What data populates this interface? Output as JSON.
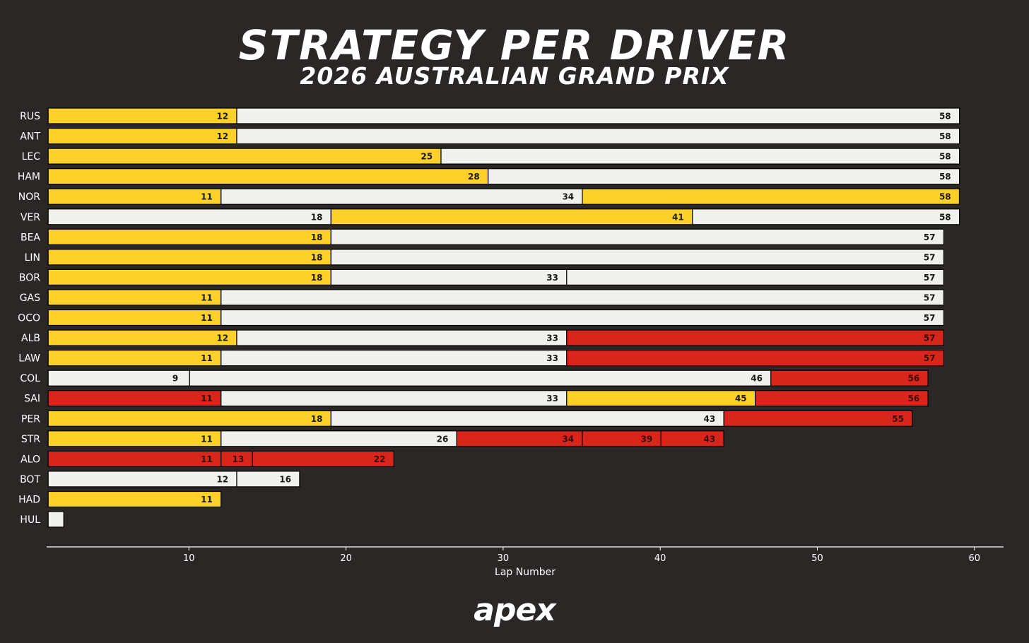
{
  "chart_data": {
    "type": "bar",
    "title": "Strategy per Driver",
    "subtitle": "2026 Australian Grand Prix",
    "xlabel": "Lap Number",
    "ylabel": "",
    "xlim": [
      1,
      62
    ],
    "xticks": [
      10,
      20,
      30,
      40,
      50,
      60
    ],
    "grid": false,
    "colors": {
      "MEDIUM": "#fed12a",
      "HARD": "#f0f0ec",
      "SOFT": "#d9261c"
    },
    "drivers": [
      {
        "name": "RUS",
        "stints": [
          {
            "compound": "MEDIUM",
            "end": 12
          },
          {
            "compound": "HARD",
            "end": 58
          }
        ]
      },
      {
        "name": "ANT",
        "stints": [
          {
            "compound": "MEDIUM",
            "end": 12
          },
          {
            "compound": "HARD",
            "end": 58
          }
        ]
      },
      {
        "name": "LEC",
        "stints": [
          {
            "compound": "MEDIUM",
            "end": 25
          },
          {
            "compound": "HARD",
            "end": 58
          }
        ]
      },
      {
        "name": "HAM",
        "stints": [
          {
            "compound": "MEDIUM",
            "end": 28
          },
          {
            "compound": "HARD",
            "end": 58
          }
        ]
      },
      {
        "name": "NOR",
        "stints": [
          {
            "compound": "MEDIUM",
            "end": 11
          },
          {
            "compound": "HARD",
            "end": 34
          },
          {
            "compound": "MEDIUM",
            "end": 58
          }
        ]
      },
      {
        "name": "VER",
        "stints": [
          {
            "compound": "HARD",
            "end": 18
          },
          {
            "compound": "MEDIUM",
            "end": 41
          },
          {
            "compound": "HARD",
            "end": 58
          }
        ]
      },
      {
        "name": "BEA",
        "stints": [
          {
            "compound": "MEDIUM",
            "end": 18
          },
          {
            "compound": "HARD",
            "end": 57
          }
        ]
      },
      {
        "name": "LIN",
        "stints": [
          {
            "compound": "MEDIUM",
            "end": 18
          },
          {
            "compound": "HARD",
            "end": 57
          }
        ]
      },
      {
        "name": "BOR",
        "stints": [
          {
            "compound": "MEDIUM",
            "end": 18
          },
          {
            "compound": "HARD",
            "end": 33
          },
          {
            "compound": "HARD",
            "end": 57
          }
        ]
      },
      {
        "name": "GAS",
        "stints": [
          {
            "compound": "MEDIUM",
            "end": 11
          },
          {
            "compound": "HARD",
            "end": 57
          }
        ]
      },
      {
        "name": "OCO",
        "stints": [
          {
            "compound": "MEDIUM",
            "end": 11
          },
          {
            "compound": "HARD",
            "end": 57
          }
        ]
      },
      {
        "name": "ALB",
        "stints": [
          {
            "compound": "MEDIUM",
            "end": 12
          },
          {
            "compound": "HARD",
            "end": 33
          },
          {
            "compound": "SOFT",
            "end": 57
          }
        ]
      },
      {
        "name": "LAW",
        "stints": [
          {
            "compound": "MEDIUM",
            "end": 11
          },
          {
            "compound": "HARD",
            "end": 33
          },
          {
            "compound": "SOFT",
            "end": 57
          }
        ]
      },
      {
        "name": "COL",
        "stints": [
          {
            "compound": "HARD",
            "end": 9
          },
          {
            "compound": "HARD",
            "end": 46
          },
          {
            "compound": "SOFT",
            "end": 56
          }
        ]
      },
      {
        "name": "SAI",
        "stints": [
          {
            "compound": "SOFT",
            "end": 11
          },
          {
            "compound": "HARD",
            "end": 33
          },
          {
            "compound": "MEDIUM",
            "end": 45
          },
          {
            "compound": "SOFT",
            "end": 56
          }
        ]
      },
      {
        "name": "PER",
        "stints": [
          {
            "compound": "MEDIUM",
            "end": 18
          },
          {
            "compound": "HARD",
            "end": 43
          },
          {
            "compound": "SOFT",
            "end": 55
          }
        ]
      },
      {
        "name": "STR",
        "stints": [
          {
            "compound": "MEDIUM",
            "end": 11
          },
          {
            "compound": "HARD",
            "end": 26
          },
          {
            "compound": "SOFT",
            "end": 34
          },
          {
            "compound": "SOFT",
            "end": 39
          },
          {
            "compound": "SOFT",
            "end": 43
          }
        ]
      },
      {
        "name": "ALO",
        "stints": [
          {
            "compound": "SOFT",
            "end": 11
          },
          {
            "compound": "SOFT",
            "end": 13
          },
          {
            "compound": "SOFT",
            "end": 22
          }
        ]
      },
      {
        "name": "BOT",
        "stints": [
          {
            "compound": "HARD",
            "end": 12
          },
          {
            "compound": "HARD",
            "end": 16
          }
        ]
      },
      {
        "name": "HAD",
        "stints": [
          {
            "compound": "MEDIUM",
            "end": 11
          }
        ]
      },
      {
        "name": "HUL",
        "stints": [
          {
            "compound": "HARD",
            "end": 1
          }
        ]
      }
    ]
  },
  "brand": {
    "logo": "apex"
  }
}
